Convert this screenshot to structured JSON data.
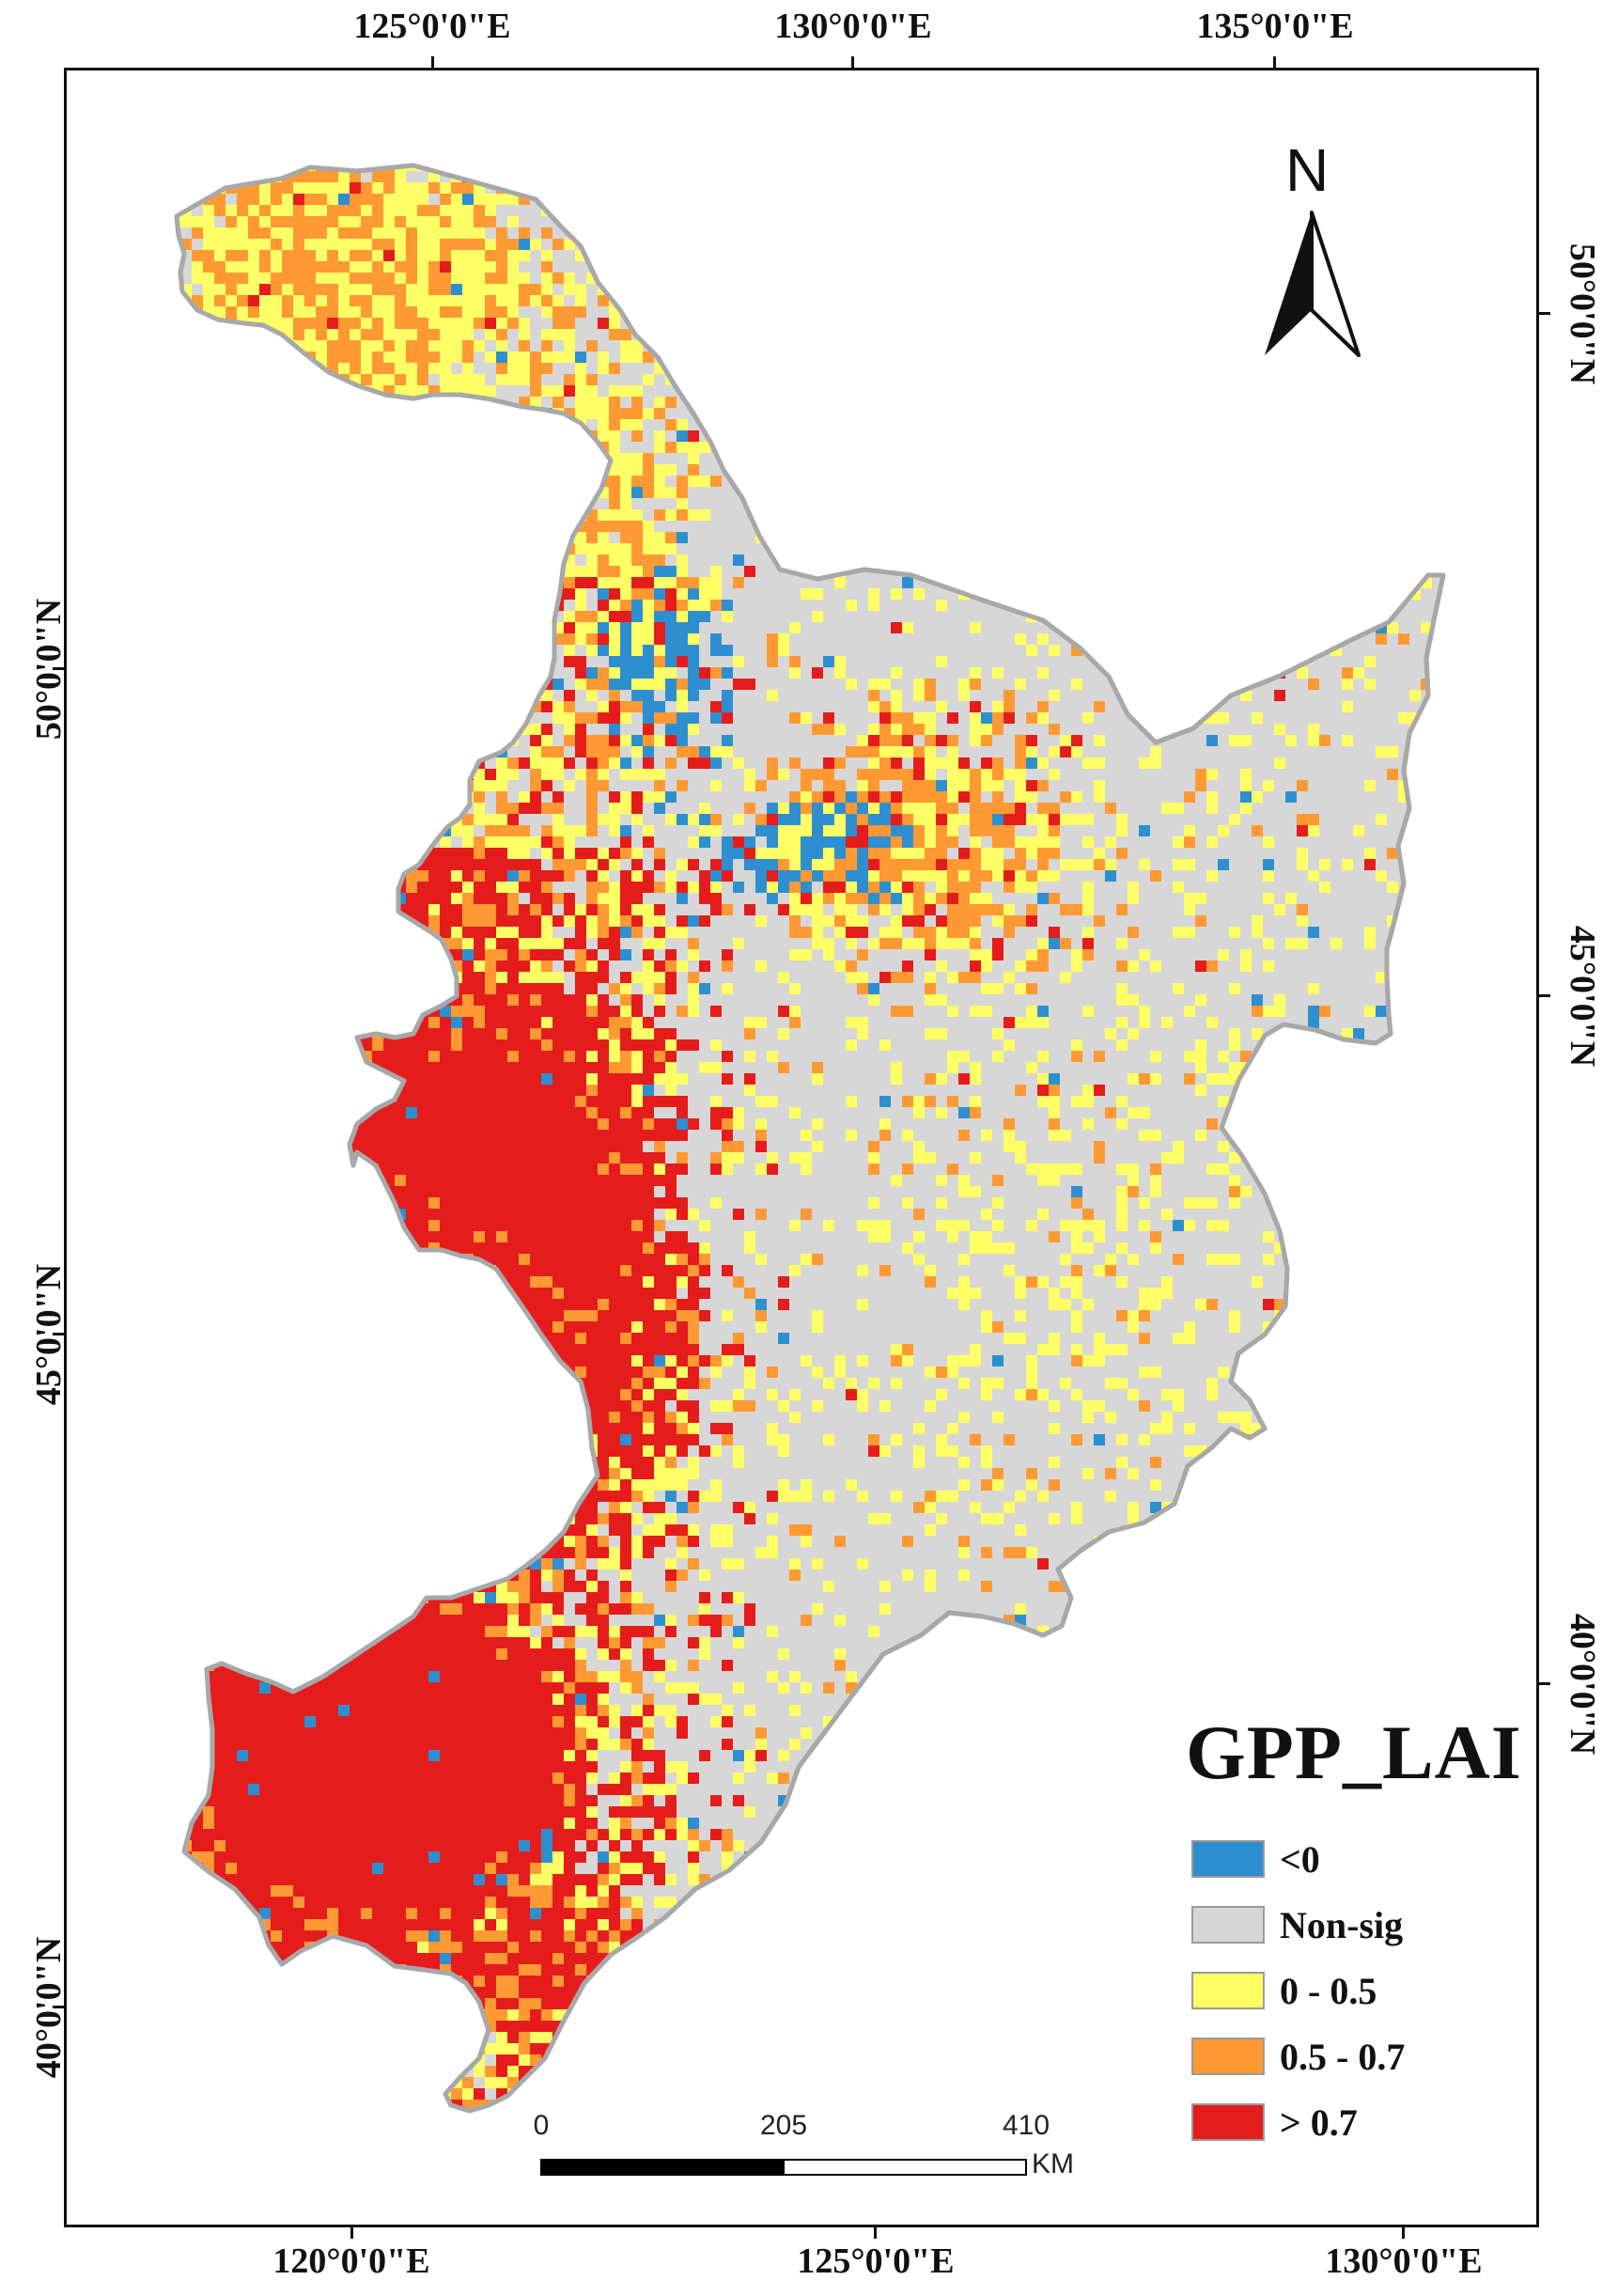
{
  "map": {
    "legend": {
      "title": "GPP_LAI",
      "classes": [
        {
          "label": "<0",
          "color": "#2e8fd0"
        },
        {
          "label": "Non-sig",
          "color": "#d7d7d7"
        },
        {
          "label": "0 - 0.5",
          "color": "#ffff66"
        },
        {
          "label": "0.5 - 0.7",
          "color": "#ff9933"
        },
        {
          "label": "> 0.7",
          "color": "#e51c1c"
        }
      ]
    },
    "north_arrow": {
      "label": "N"
    },
    "scale_bar": {
      "labels": [
        "0",
        "205",
        "410"
      ],
      "unit": "KM"
    },
    "graticule": {
      "top": [
        "125°0'0\"E",
        "130°0'0\"E",
        "135°0'0\"E"
      ],
      "bottom": [
        "120°0'0\"E",
        "125°0'0\"E",
        "130°0'0\"E"
      ],
      "left": [
        "50°0'0\"N",
        "45°0'0\"N",
        "40°0'0\"N"
      ],
      "right": [
        "50°0'0\"N",
        "45°0'0\"N",
        "40°0'0\"N"
      ]
    },
    "colors": {
      "outline": "#a8a8a8",
      "frame": "#111111"
    }
  }
}
